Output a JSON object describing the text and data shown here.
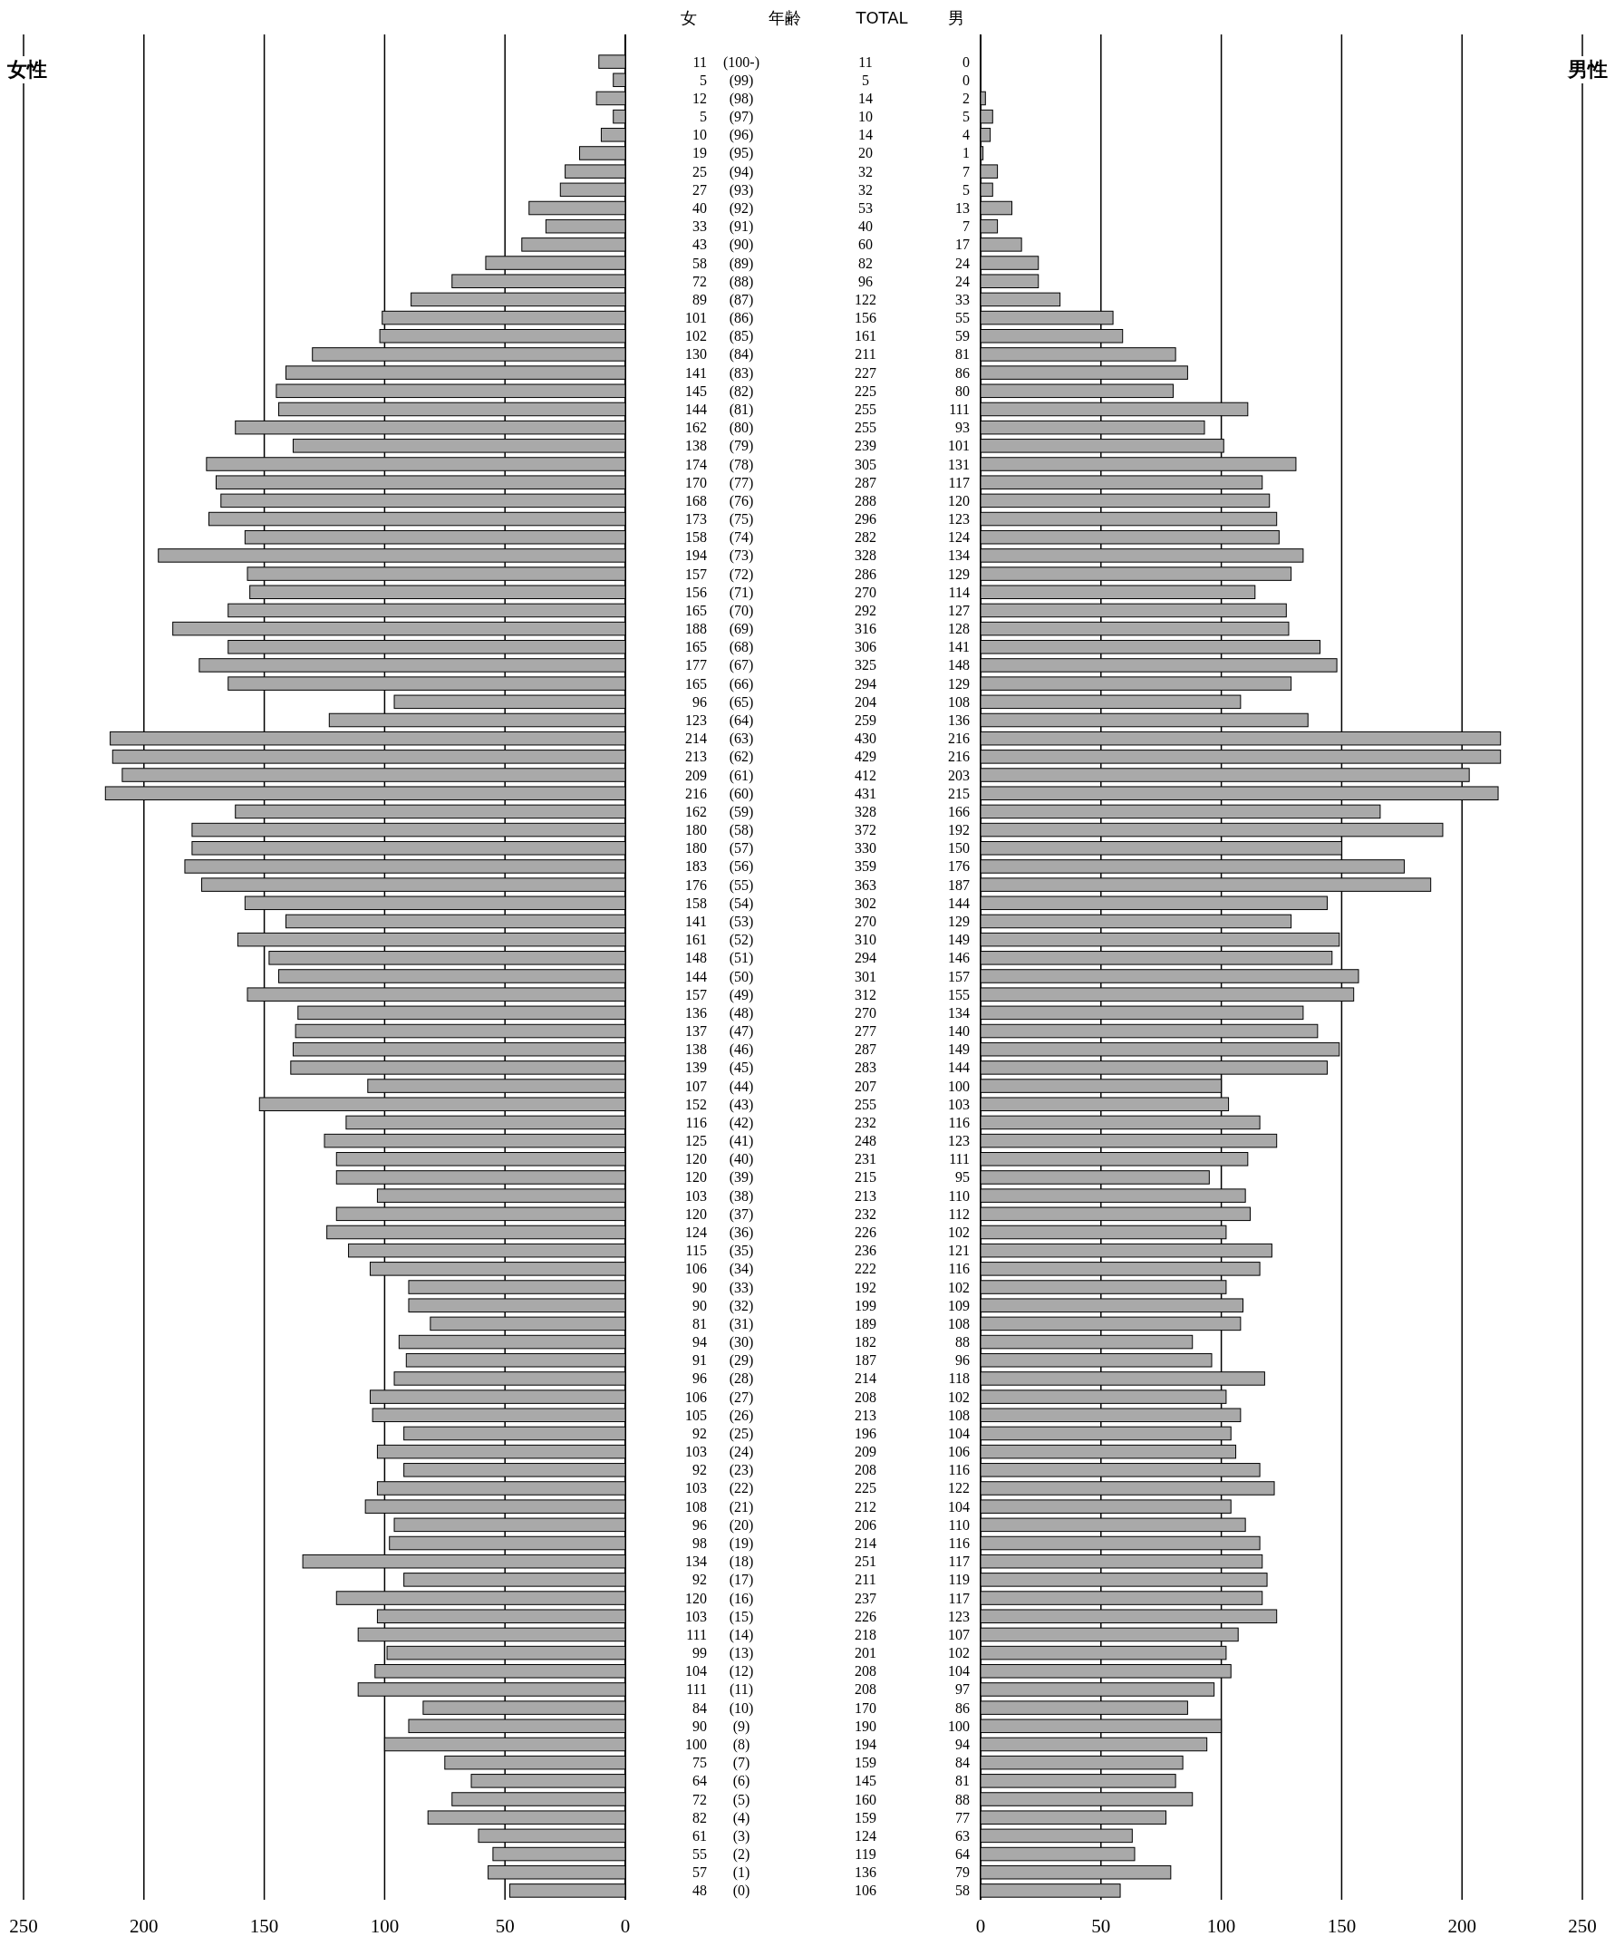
{
  "chart_data": [
    {
      "type": "bar",
      "orientation": "horizontal",
      "grid": "x",
      "data_labels": true,
      "annotations": [
        "女",
        "年齢"
      ],
      "categories": [
        "(100-)",
        "(99)",
        "(98)",
        "(97)",
        "(96)",
        "(95)",
        "(94)",
        "(93)",
        "(92)",
        "(91)",
        "(90)",
        "(89)",
        "(88)",
        "(87)",
        "(86)",
        "(85)",
        "(84)",
        "(83)",
        "(82)",
        "(81)",
        "(80)",
        "(79)",
        "(78)",
        "(77)",
        "(76)",
        "(75)",
        "(74)",
        "(73)",
        "(72)",
        "(71)",
        "(70)",
        "(69)",
        "(68)",
        "(67)",
        "(66)",
        "(65)",
        "(64)",
        "(63)",
        "(62)",
        "(61)",
        "(60)",
        "(59)",
        "(58)",
        "(57)",
        "(56)",
        "(55)",
        "(54)",
        "(53)",
        "(52)",
        "(51)",
        "(50)",
        "(49)",
        "(48)",
        "(47)",
        "(46)",
        "(45)",
        "(44)",
        "(43)",
        "(42)",
        "(41)",
        "(40)",
        "(39)",
        "(38)",
        "(37)",
        "(36)",
        "(35)",
        "(34)",
        "(33)",
        "(32)",
        "(31)",
        "(30)",
        "(29)",
        "(28)",
        "(27)",
        "(26)",
        "(25)",
        "(24)",
        "(23)",
        "(22)",
        "(21)",
        "(20)",
        "(19)",
        "(18)",
        "(17)",
        "(16)",
        "(15)",
        "(14)",
        "(13)",
        "(12)",
        "(11)",
        "(10)",
        "(9)",
        "(8)",
        "(7)",
        "(6)",
        "(5)",
        "(4)",
        "(3)",
        "(2)",
        "(1)",
        "(0)"
      ],
      "series": [
        {
          "name": "女性",
          "color": "#a9a9a9",
          "values": [
            11,
            5,
            12,
            5,
            10,
            19,
            25,
            27,
            40,
            33,
            43,
            58,
            72,
            89,
            101,
            102,
            130,
            141,
            145,
            144,
            162,
            138,
            174,
            170,
            168,
            173,
            158,
            194,
            157,
            156,
            165,
            188,
            165,
            177,
            165,
            96,
            123,
            214,
            213,
            209,
            216,
            162,
            180,
            180,
            183,
            176,
            158,
            141,
            161,
            148,
            144,
            157,
            136,
            137,
            138,
            139,
            107,
            152,
            116,
            125,
            120,
            120,
            103,
            120,
            124,
            115,
            106,
            90,
            90,
            81,
            94,
            91,
            96,
            106,
            105,
            92,
            103,
            92,
            103,
            108,
            96,
            98,
            134,
            92,
            120,
            103,
            111,
            99,
            104,
            111,
            84,
            90,
            100,
            75,
            64,
            72,
            82,
            61,
            55,
            57,
            48
          ]
        }
      ],
      "xlim": [
        250,
        0
      ],
      "xticks": [
        250,
        200,
        150,
        100,
        50,
        0
      ]
    },
    {
      "type": "other",
      "annotations": [
        "TOTAL",
        "11",
        "5",
        "14",
        "10",
        "14",
        "20",
        "32",
        "32",
        "53",
        "40",
        "60",
        "82",
        "96",
        "122",
        "156",
        "161",
        "211",
        "227",
        "225",
        "255",
        "255",
        "239",
        "305",
        "287",
        "288",
        "296",
        "282",
        "328",
        "286",
        "270",
        "292",
        "316",
        "306",
        "325",
        "294",
        "204",
        "259",
        "430",
        "429",
        "412",
        "431",
        "328",
        "372",
        "330",
        "359",
        "363",
        "302",
        "270",
        "310",
        "294",
        "301",
        "312",
        "270",
        "277",
        "287",
        "283",
        "207",
        "255",
        "232",
        "248",
        "231",
        "215",
        "213",
        "232",
        "226",
        "236",
        "222",
        "192",
        "199",
        "189",
        "182",
        "187",
        "214",
        "208",
        "213",
        "196",
        "209",
        "208",
        "225",
        "212",
        "206",
        "214",
        "251",
        "211",
        "237",
        "226",
        "218",
        "201",
        "208",
        "208",
        "170",
        "190",
        "194",
        "159",
        "145",
        "160",
        "159",
        "124",
        "119",
        "136",
        "106"
      ]
    },
    {
      "type": "bar",
      "orientation": "horizontal",
      "grid": "x",
      "data_labels": true,
      "annotations": [
        "男"
      ],
      "series": [
        {
          "name": "男性",
          "color": "#a9a9a9",
          "values": [
            0,
            0,
            2,
            5,
            4,
            1,
            7,
            5,
            13,
            7,
            17,
            24,
            24,
            33,
            55,
            59,
            81,
            86,
            80,
            111,
            93,
            101,
            131,
            117,
            120,
            123,
            124,
            134,
            129,
            114,
            127,
            128,
            141,
            148,
            129,
            108,
            136,
            216,
            216,
            203,
            215,
            166,
            192,
            150,
            176,
            187,
            144,
            129,
            149,
            146,
            157,
            155,
            134,
            140,
            149,
            144,
            100,
            103,
            116,
            123,
            111,
            95,
            110,
            112,
            102,
            121,
            116,
            102,
            109,
            108,
            88,
            96,
            118,
            102,
            108,
            104,
            106,
            116,
            122,
            104,
            110,
            116,
            117,
            119,
            117,
            123,
            107,
            102,
            104,
            97,
            86,
            100,
            94,
            84,
            81,
            88,
            77,
            63,
            64,
            79,
            58
          ]
        }
      ],
      "xlim": [
        0,
        250
      ],
      "xticks": [
        0,
        50,
        100,
        150,
        200,
        250
      ]
    }
  ]
}
